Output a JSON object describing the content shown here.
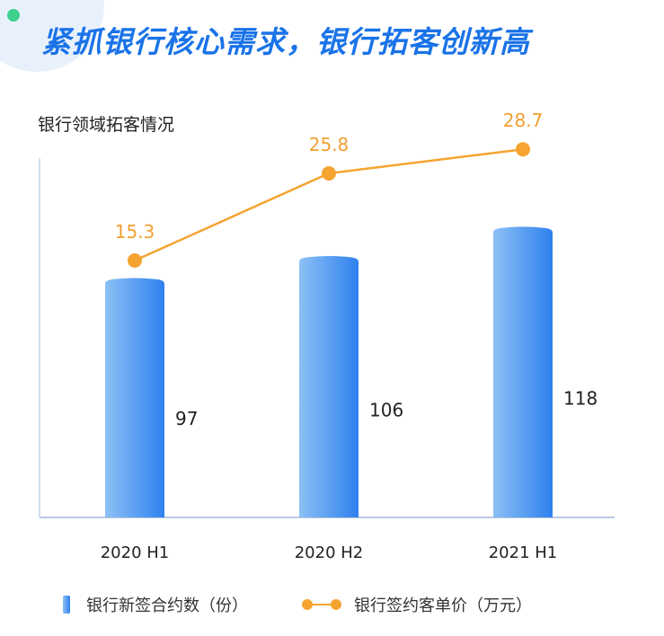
{
  "header": {
    "title": "紧抓银行核心需求，银行拓客创新高"
  },
  "chart_data": {
    "type": "bar",
    "subtitle": "银行领域拓客情况",
    "categories": [
      "2020 H1",
      "2020 H2",
      "2021 H1"
    ],
    "series": [
      {
        "name": "银行新签合约数（份）",
        "type": "bar",
        "values": [
          97,
          106,
          118
        ],
        "labels": [
          "97",
          "106",
          "118"
        ]
      },
      {
        "name": "银行签约客单价（万元）",
        "type": "line",
        "values": [
          15.3,
          25.8,
          28.7
        ],
        "labels": [
          "15.3",
          "25.8",
          "28.7"
        ]
      }
    ],
    "legend_position": "bottom",
    "grid": false,
    "colors": {
      "bar_light": "#8cc0f5",
      "bar_dark": "#2f81ee",
      "line": "#f5a431",
      "title": "#1a73e8"
    }
  }
}
